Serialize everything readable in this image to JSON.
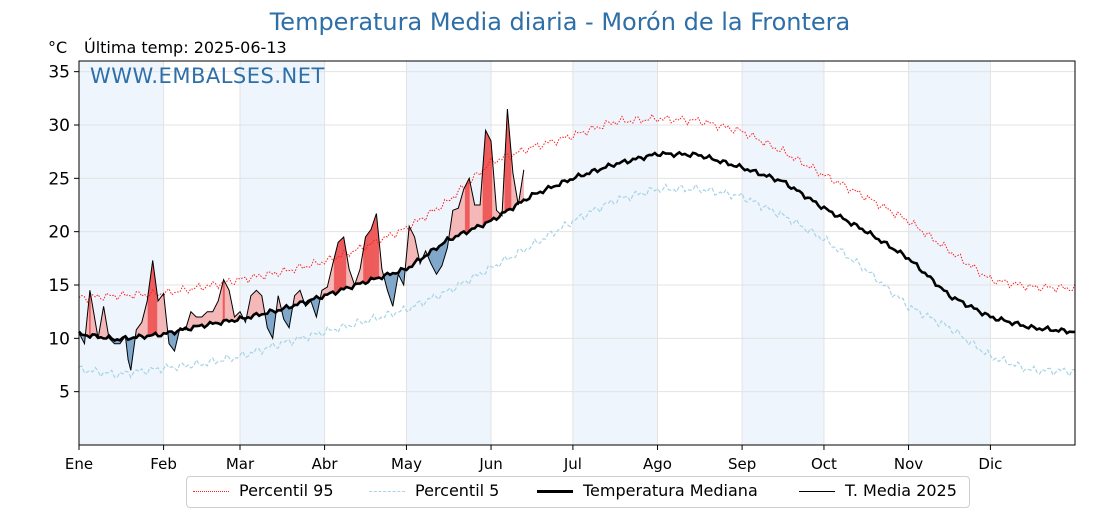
{
  "header": {
    "title": "Temperatura Media diaria - Morón de la Frontera",
    "unit": "°C",
    "last_temp": "Última temp: 2025-06-13",
    "watermark": "WWW.EMBALSES.NET"
  },
  "colors": {
    "p95": "#ff2020",
    "p5": "#a8d4e6",
    "median": "#000000",
    "current": "#000000",
    "above_fill": "#f4b8b8",
    "above_strong": "#ee5a5a",
    "below_fill": "#7fa7c9",
    "band_shade": "#eef5fc",
    "title": "#2e6fa8"
  },
  "chart_data": {
    "type": "line",
    "xlabel": "",
    "ylabel": "°C",
    "xlim": [
      1,
      366
    ],
    "ylim": [
      0,
      36
    ],
    "yticks": [
      5,
      10,
      15,
      20,
      25,
      30,
      35
    ],
    "grid": true,
    "legend_position": "bottom",
    "month_labels": [
      "Ene",
      "Feb",
      "Mar",
      "Abr",
      "May",
      "Jun",
      "Jul",
      "Ago",
      "Sep",
      "Oct",
      "Nov",
      "Dic"
    ],
    "month_start_days": [
      1,
      32,
      60,
      91,
      121,
      152,
      182,
      213,
      244,
      274,
      305,
      335
    ],
    "series": [
      {
        "name": "Percentil 95",
        "style": "dotted",
        "x": [
          1,
          15,
          32,
          46,
          60,
          75,
          91,
          106,
          121,
          136,
          152,
          167,
          182,
          197,
          213,
          228,
          244,
          259,
          274,
          289,
          305,
          320,
          335,
          350,
          366
        ],
        "y": [
          13.8,
          14.0,
          14.2,
          14.8,
          15.5,
          16.2,
          17.2,
          18.6,
          20.3,
          22.8,
          26.5,
          27.9,
          29.0,
          30.3,
          30.6,
          30.4,
          29.4,
          27.5,
          25.3,
          23.3,
          21.0,
          18.2,
          15.5,
          14.8,
          14.7
        ]
      },
      {
        "name": "Percentil 5",
        "style": "dashed",
        "x": [
          1,
          15,
          32,
          46,
          60,
          75,
          91,
          106,
          121,
          136,
          152,
          167,
          182,
          197,
          213,
          228,
          244,
          259,
          274,
          289,
          305,
          320,
          335,
          350,
          366
        ],
        "y": [
          7.1,
          6.6,
          7.2,
          7.6,
          8.3,
          9.5,
          10.6,
          11.6,
          12.7,
          14.4,
          16.6,
          18.7,
          21.0,
          22.9,
          24.0,
          24.0,
          23.3,
          21.5,
          19.3,
          16.5,
          13.0,
          11.0,
          8.3,
          7.0,
          6.9
        ]
      },
      {
        "name": "Temperatura Mediana",
        "style": "solid-bold",
        "x": [
          1,
          15,
          32,
          46,
          60,
          75,
          91,
          106,
          121,
          136,
          152,
          167,
          182,
          197,
          213,
          228,
          244,
          259,
          274,
          289,
          305,
          320,
          335,
          350,
          366
        ],
        "y": [
          10.4,
          9.9,
          10.4,
          11.2,
          11.8,
          12.7,
          14.0,
          15.3,
          16.5,
          19.2,
          21.0,
          23.4,
          25.0,
          26.3,
          27.3,
          27.2,
          26.0,
          24.7,
          22.2,
          20.1,
          17.5,
          14.0,
          12.0,
          11.0,
          10.6
        ]
      },
      {
        "name": "T. Media 2025",
        "style": "solid-thin",
        "x": [
          1,
          3,
          5,
          8,
          10,
          12,
          14,
          16,
          18,
          19,
          20,
          22,
          24,
          26,
          28,
          30,
          32,
          34,
          36,
          38,
          40,
          42,
          44,
          46,
          48,
          50,
          52,
          54,
          56,
          58,
          60,
          62,
          64,
          66,
          68,
          70,
          72,
          74,
          76,
          78,
          80,
          82,
          84,
          86,
          88,
          90,
          92,
          94,
          96,
          98,
          100,
          102,
          104,
          106,
          108,
          110,
          112,
          114,
          116,
          118,
          120,
          122,
          124,
          126,
          128,
          130,
          132,
          134,
          136,
          138,
          140,
          142,
          144,
          146,
          148,
          150,
          152,
          154,
          156,
          158,
          160,
          162,
          164
        ],
        "y": [
          10.5,
          9.5,
          14.5,
          10.0,
          13.0,
          10.0,
          9.5,
          9.5,
          10.2,
          8.0,
          7.0,
          10.8,
          11.5,
          13.5,
          17.3,
          13.5,
          14.2,
          9.5,
          8.8,
          11.0,
          10.8,
          12.5,
          12.0,
          12.0,
          12.5,
          12.5,
          13.5,
          15.5,
          14.5,
          12.0,
          12.5,
          11.5,
          14.0,
          14.5,
          14.0,
          11.0,
          10.0,
          14.0,
          11.8,
          11.0,
          14.0,
          14.5,
          13.0,
          13.5,
          12.0,
          14.5,
          14.8,
          17.0,
          19.0,
          19.5,
          16.5,
          15.0,
          16.5,
          19.5,
          20.2,
          21.7,
          16.5,
          14.5,
          13.0,
          16.0,
          15.0,
          20.5,
          19.5,
          17.0,
          18.2,
          17.0,
          16.0,
          16.8,
          18.5,
          22.0,
          22.2,
          24.0,
          25.0,
          22.5,
          22.5,
          29.5,
          28.5,
          22.0,
          21.5,
          31.5,
          25.5,
          22.5,
          25.8
        ]
      }
    ]
  },
  "legend": {
    "p95": "Percentil 95",
    "p5": "Percentil 5",
    "median": "Temperatura Mediana",
    "current": "T. Media 2025"
  }
}
